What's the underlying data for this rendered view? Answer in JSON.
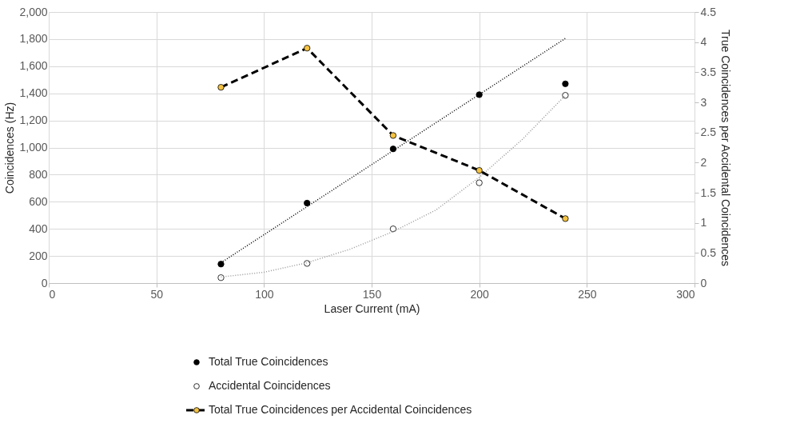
{
  "chart_data": {
    "type": "scatter",
    "xlabel": "Laser Current (mA)",
    "ylabel": "Coincidences (Hz)",
    "y2label": "True Coincidences per Accidental Coincidences",
    "x": [
      80,
      120,
      160,
      200,
      240
    ],
    "series": [
      {
        "name": "Total True Coincidences",
        "type": "scatter",
        "color": "#000000",
        "values": [
          140,
          590,
          990,
          1390,
          1470
        ]
      },
      {
        "name": "Accidental Coincidences",
        "type": "scatter",
        "color": "#ffffff",
        "values": [
          40,
          145,
          400,
          740,
          1385
        ]
      },
      {
        "name": "Total True Coincidences per Accidental Coincidences",
        "type": "line",
        "axis": "y2",
        "color": "#000000",
        "colors": [
          "#f5c342",
          "#f5c342",
          "#f5c342",
          "#f5c342",
          "#f5c342"
        ],
        "line_style": "dashed",
        "values": [
          3.25,
          3.9,
          2.45,
          1.87,
          1.07
        ]
      },
      {
        "type": "line",
        "x": [
          80,
          240
        ],
        "color": "#000000",
        "line_style": "dotted",
        "marker": "none",
        "values": [
          150,
          1805
        ]
      },
      {
        "type": "line",
        "x": [
          80,
          100,
          120,
          140,
          160,
          180,
          200,
          220,
          240
        ],
        "color": "#999999",
        "line_style": "dotted",
        "marker": "none",
        "values": [
          45,
          80,
          150,
          250,
          380,
          540,
          780,
          1060,
          1385
        ]
      }
    ],
    "xlim": [
      0,
      300
    ],
    "xticks": [
      0,
      50,
      100,
      150,
      200,
      250,
      300
    ],
    "ylim": [
      0,
      2000
    ],
    "yticks": [
      0,
      200,
      400,
      600,
      800,
      {
        "value": 1000,
        "label": "1,000"
      },
      {
        "value": 1200,
        "label": "1,200"
      },
      {
        "value": 1400,
        "label": "1,400"
      },
      {
        "value": 1600,
        "label": "1,600"
      },
      {
        "value": 1800,
        "label": "1,800"
      },
      {
        "value": 2000,
        "label": "2,000"
      }
    ],
    "y2lim": [
      0,
      4.5
    ],
    "y2ticks": [
      0,
      0.5,
      1,
      1.5,
      2,
      2.5,
      3,
      3.5,
      4,
      4.5
    ],
    "grid": true,
    "legend": "bottom",
    "marker": "circle"
  }
}
